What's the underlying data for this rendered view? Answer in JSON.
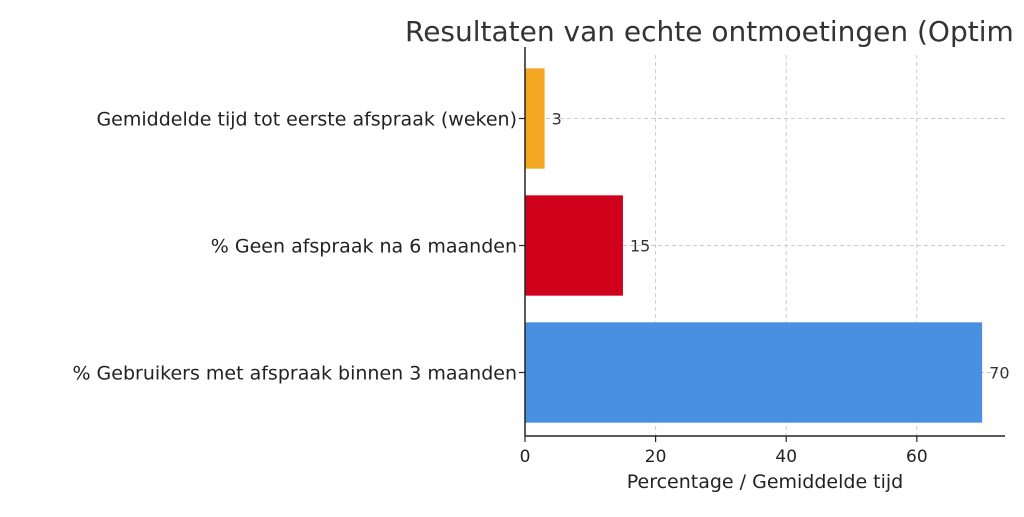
{
  "chart_data": {
    "type": "bar",
    "orientation": "horizontal",
    "title": "Resultaten van echte ontmoetingen (Optim",
    "xlabel": "Percentage / Gemiddelde tijd",
    "ylabel": "",
    "categories": [
      "% Gebruikers met afspraak binnen 3 maanden",
      "% Geen afspraak na 6 maanden",
      "Gemiddelde tijd tot eerste afspraak (weken)"
    ],
    "values": [
      70,
      15,
      3
    ],
    "data_labels": [
      "70",
      "15",
      "3"
    ],
    "colors": [
      "#4a90e2",
      "#d0021b",
      "#f5a623"
    ],
    "xlim": [
      0,
      73.5
    ],
    "xticks": [
      0,
      20,
      40,
      60
    ],
    "xtick_labels": [
      "0",
      "20",
      "40",
      "60"
    ],
    "grid": true
  }
}
